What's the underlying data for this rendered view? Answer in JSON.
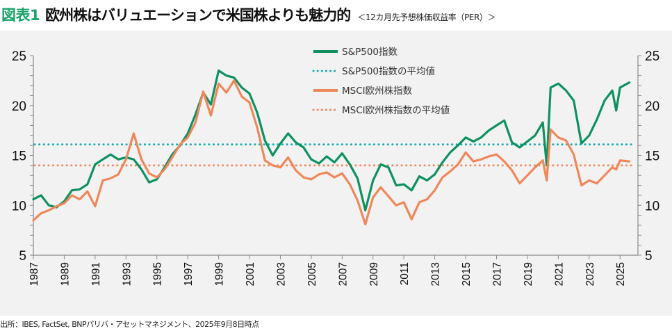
{
  "header": {
    "figure_tag": "図表1",
    "title": "欧州株はバリュエーションで米国株よりも魅力的",
    "subtitle": "＜12カ月先予想株価収益率（PER）＞"
  },
  "source_note": "出所：IBES, FactSet, BNPパリバ・アセットマネジメント、2025年9月8日時点",
  "colors": {
    "sp500": "#0e9160",
    "sp500_avg": "#19aab0",
    "msci_europe": "#f0875a",
    "msci_europe_avg": "#f0875a",
    "title_tag": "#1aa36a",
    "background": "#f2f2f2"
  },
  "chart_data": {
    "type": "line",
    "title": "欧州株はバリュエーションで米国株よりも魅力的",
    "subtitle": "12カ月先予想株価収益率（PER）",
    "xlabel": "",
    "ylabel": "",
    "ylim": [
      5,
      25
    ],
    "xlim": [
      1987,
      2025.8
    ],
    "yticks": [
      5,
      10,
      15,
      20,
      25
    ],
    "ytick_labels_left": [
      "5",
      "10",
      "15",
      "20",
      "25"
    ],
    "ytick_labels_right": [
      "5",
      "10",
      "15",
      "20",
      "25"
    ],
    "xtick_labels": [
      "1987",
      "1989",
      "1991",
      "1993",
      "1995",
      "1997",
      "1999",
      "2001",
      "2003",
      "2005",
      "2007",
      "2009",
      "2011",
      "2013",
      "2015",
      "2017",
      "2019",
      "2021",
      "2023",
      "2025"
    ],
    "grid": false,
    "legend_position": "top-center",
    "legend": [
      {
        "label": "S&P500指数",
        "style": "solid",
        "series": "sp500"
      },
      {
        "label": "S&P500指数の平均値",
        "style": "dotted",
        "series": "sp500_avg"
      },
      {
        "label": "MSCI欧州株指数",
        "style": "solid",
        "series": "msci_europe"
      },
      {
        "label": "MSCI欧州株指数の平均値",
        "style": "dotted",
        "series": "msci_europe_avg"
      }
    ],
    "x": [
      1987.0,
      1987.5,
      1988.0,
      1988.5,
      1989.0,
      1989.5,
      1990.0,
      1990.5,
      1991.0,
      1991.5,
      1992.0,
      1992.5,
      1993.0,
      1993.5,
      1994.0,
      1994.5,
      1995.0,
      1995.5,
      1996.0,
      1996.5,
      1997.0,
      1997.5,
      1998.0,
      1998.5,
      1999.0,
      1999.5,
      2000.0,
      2000.5,
      2001.0,
      2001.5,
      2002.0,
      2002.5,
      2003.0,
      2003.5,
      2004.0,
      2004.5,
      2005.0,
      2005.5,
      2006.0,
      2006.5,
      2007.0,
      2007.5,
      2008.0,
      2008.5,
      2009.0,
      2009.5,
      2010.0,
      2010.5,
      2011.0,
      2011.5,
      2012.0,
      2012.5,
      2013.0,
      2013.5,
      2014.0,
      2014.5,
      2015.0,
      2015.5,
      2016.0,
      2016.5,
      2017.0,
      2017.5,
      2018.0,
      2018.5,
      2019.0,
      2019.5,
      2020.0,
      2020.25,
      2020.5,
      2021.0,
      2021.5,
      2022.0,
      2022.5,
      2023.0,
      2023.5,
      2024.0,
      2024.5,
      2024.75,
      2025.0,
      2025.6
    ],
    "series": [
      {
        "name": "S&P500指数",
        "key": "sp500",
        "values": [
          10.6,
          11.0,
          10.0,
          9.8,
          10.4,
          11.5,
          11.6,
          12.1,
          14.1,
          14.6,
          15.1,
          14.6,
          14.8,
          14.6,
          13.6,
          12.3,
          12.6,
          13.8,
          15.1,
          16.0,
          17.2,
          19.1,
          21.3,
          20.1,
          23.5,
          23.0,
          22.8,
          21.8,
          21.2,
          19.3,
          16.5,
          15.0,
          16.2,
          17.2,
          16.3,
          15.8,
          14.6,
          14.2,
          14.9,
          14.3,
          15.2,
          14.1,
          12.7,
          9.5,
          12.5,
          14.1,
          13.8,
          12.0,
          12.1,
          11.5,
          12.9,
          12.5,
          13.1,
          14.3,
          15.3,
          16.0,
          16.8,
          16.4,
          16.8,
          17.5,
          18.0,
          18.5,
          16.3,
          15.8,
          16.4,
          17.0,
          18.3,
          14.0,
          21.8,
          22.2,
          21.5,
          20.5,
          16.2,
          17.0,
          18.6,
          20.5,
          21.5,
          19.5,
          21.8,
          22.3
        ]
      },
      {
        "name": "MSCI欧州株指数",
        "key": "msci_europe",
        "values": [
          8.5,
          9.2,
          9.5,
          9.9,
          10.2,
          11.0,
          10.6,
          11.4,
          9.9,
          12.5,
          12.7,
          13.1,
          14.6,
          17.2,
          14.6,
          13.2,
          12.8,
          13.6,
          14.8,
          16.1,
          16.8,
          18.3,
          21.4,
          19.0,
          22.2,
          21.3,
          22.5,
          20.9,
          20.3,
          17.8,
          14.5,
          14.0,
          13.8,
          14.8,
          13.5,
          12.8,
          12.6,
          13.1,
          13.3,
          12.8,
          13.2,
          12.1,
          10.5,
          8.1,
          10.8,
          11.8,
          10.9,
          10.0,
          10.3,
          8.6,
          10.3,
          10.6,
          11.5,
          12.8,
          13.4,
          14.1,
          15.3,
          14.4,
          14.6,
          14.9,
          15.1,
          14.4,
          13.5,
          12.2,
          13.0,
          13.8,
          14.5,
          12.5,
          17.6,
          16.8,
          16.5,
          15.1,
          12.0,
          12.5,
          12.2,
          13.0,
          13.8,
          13.6,
          14.5,
          14.4
        ]
      },
      {
        "name": "S&P500指数の平均値",
        "key": "sp500_avg",
        "constant": 16.1
      },
      {
        "name": "MSCI欧州株指数の平均値",
        "key": "msci_europe_avg",
        "constant": 14.0
      }
    ]
  }
}
